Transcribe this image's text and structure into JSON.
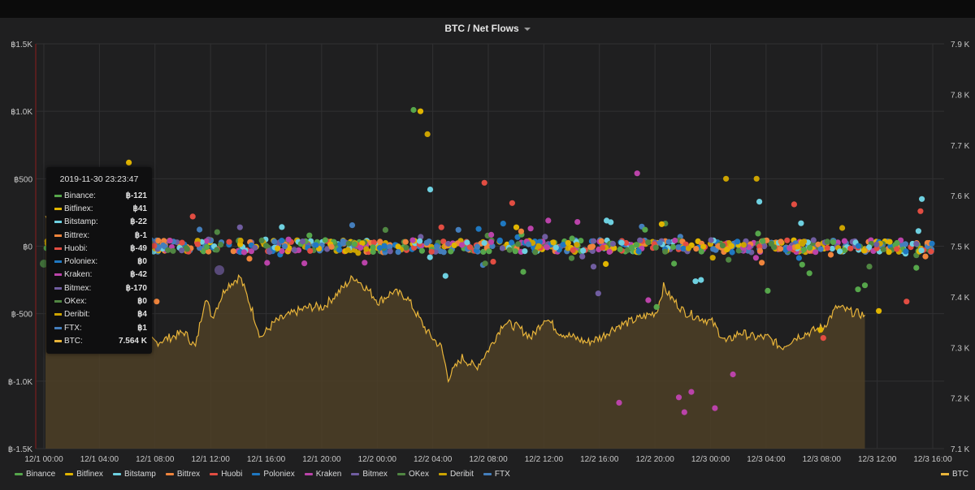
{
  "panel": {
    "title": "BTC / Net Flows"
  },
  "colors": {
    "background": "#1f1f20",
    "grid": "#303032",
    "btc_fill": "#4d3f27",
    "btc_line": "#e8b43a"
  },
  "chart_data": {
    "type": "scatter",
    "title": "BTC / Net Flows",
    "x_ticks": [
      "12/1 00:00",
      "12/1 04:00",
      "12/1 08:00",
      "12/1 12:00",
      "12/1 16:00",
      "12/1 20:00",
      "12/2 00:00",
      "12/2 04:00",
      "12/2 08:00",
      "12/2 12:00",
      "12/2 16:00",
      "12/2 20:00",
      "12/3 00:00",
      "12/3 04:00",
      "12/3 08:00",
      "12/3 12:00",
      "12/3 16:00"
    ],
    "y_left": {
      "ticks": [
        "฿1.5K",
        "฿1.0K",
        "฿500",
        "฿0",
        "฿-500",
        "฿-1.0K",
        "฿-1.5K"
      ],
      "range": [
        -1500,
        1500
      ]
    },
    "y_right": {
      "ticks": [
        "7.9 K",
        "7.8 K",
        "7.7 K",
        "7.6 K",
        "7.5 K",
        "7.4 K",
        "7.3 K",
        "7.2 K",
        "7.1 K"
      ],
      "range": [
        7100,
        7900
      ]
    },
    "series": [
      {
        "name": "Binance",
        "color": "#56a64b",
        "axis": "left"
      },
      {
        "name": "Bitfinex",
        "color": "#e0b400",
        "axis": "left"
      },
      {
        "name": "Bitstamp",
        "color": "#6ed0e0",
        "axis": "left"
      },
      {
        "name": "Bittrex",
        "color": "#ef843c",
        "axis": "left"
      },
      {
        "name": "Huobi",
        "color": "#e24d42",
        "axis": "left"
      },
      {
        "name": "Poloniex",
        "color": "#1f78c1",
        "axis": "left"
      },
      {
        "name": "Kraken",
        "color": "#ba43a9",
        "axis": "left"
      },
      {
        "name": "Bitmex",
        "color": "#705da0",
        "axis": "left"
      },
      {
        "name": "OKex",
        "color": "#508642",
        "axis": "left"
      },
      {
        "name": "Deribit",
        "color": "#cca300",
        "axis": "left"
      },
      {
        "name": "FTX",
        "color": "#447ebc",
        "axis": "left"
      }
    ],
    "btc_series": {
      "name": "BTC",
      "axis": "right",
      "type": "area",
      "keypoints": [
        [
          0,
          7560
        ],
        [
          2,
          7430
        ],
        [
          4,
          7350
        ],
        [
          6,
          7330
        ],
        [
          8,
          7310
        ],
        [
          10,
          7330
        ],
        [
          10.8,
          7300
        ],
        [
          11.5,
          7400
        ],
        [
          12,
          7360
        ],
        [
          13,
          7420
        ],
        [
          14,
          7440
        ],
        [
          14.8,
          7380
        ],
        [
          15.5,
          7320
        ],
        [
          16.5,
          7350
        ],
        [
          18,
          7370
        ],
        [
          19,
          7380
        ],
        [
          20,
          7380
        ],
        [
          21.5,
          7420
        ],
        [
          22.2,
          7440
        ],
        [
          23,
          7420
        ],
        [
          24,
          7390
        ],
        [
          25,
          7410
        ],
        [
          26,
          7400
        ],
        [
          27.5,
          7330
        ],
        [
          28.5,
          7300
        ],
        [
          29,
          7240
        ],
        [
          30,
          7280
        ],
        [
          31,
          7260
        ],
        [
          32,
          7300
        ],
        [
          33,
          7350
        ],
        [
          34,
          7340
        ],
        [
          35,
          7320
        ],
        [
          36,
          7360
        ],
        [
          37,
          7330
        ],
        [
          38,
          7320
        ],
        [
          39,
          7310
        ],
        [
          40,
          7320
        ],
        [
          41,
          7340
        ],
        [
          42,
          7350
        ],
        [
          43,
          7360
        ],
        [
          44,
          7370
        ],
        [
          44.5,
          7420
        ],
        [
          45,
          7400
        ],
        [
          46,
          7370
        ],
        [
          47,
          7360
        ],
        [
          48,
          7350
        ],
        [
          49,
          7310
        ],
        [
          50,
          7330
        ],
        [
          51,
          7320
        ],
        [
          52,
          7320
        ],
        [
          53,
          7300
        ],
        [
          54,
          7320
        ],
        [
          55,
          7330
        ],
        [
          56,
          7340
        ],
        [
          57,
          7380
        ],
        [
          58,
          7370
        ],
        [
          59,
          7364
        ]
      ]
    }
  },
  "tooltip": {
    "time": "2019-11-30 23:23:47",
    "rows": [
      {
        "name": "Binance:",
        "value": "฿-121",
        "color": "#56a64b"
      },
      {
        "name": "Bitfinex:",
        "value": "฿41",
        "color": "#e0b400"
      },
      {
        "name": "Bitstamp:",
        "value": "฿-22",
        "color": "#6ed0e0"
      },
      {
        "name": "Bittrex:",
        "value": "฿-1",
        "color": "#ef843c"
      },
      {
        "name": "Huobi:",
        "value": "฿-49",
        "color": "#e24d42"
      },
      {
        "name": "Poloniex:",
        "value": "฿0",
        "color": "#1f78c1"
      },
      {
        "name": "Kraken:",
        "value": "฿-42",
        "color": "#ba43a9"
      },
      {
        "name": "Bitmex:",
        "value": "฿-170",
        "color": "#705da0"
      },
      {
        "name": "OKex:",
        "value": "฿0",
        "color": "#508642"
      },
      {
        "name": "Deribit:",
        "value": "฿4",
        "color": "#cca300"
      },
      {
        "name": "FTX:",
        "value": "฿1",
        "color": "#447ebc"
      },
      {
        "name": "BTC:",
        "value": "7.564 K",
        "color": "#e8b43a"
      }
    ]
  },
  "legend": {
    "left": [
      "Binance",
      "Bitfinex",
      "Bitstamp",
      "Bittrex",
      "Huobi",
      "Poloniex",
      "Kraken",
      "Bitmex",
      "OKex",
      "Deribit",
      "FTX"
    ],
    "right": "BTC"
  }
}
